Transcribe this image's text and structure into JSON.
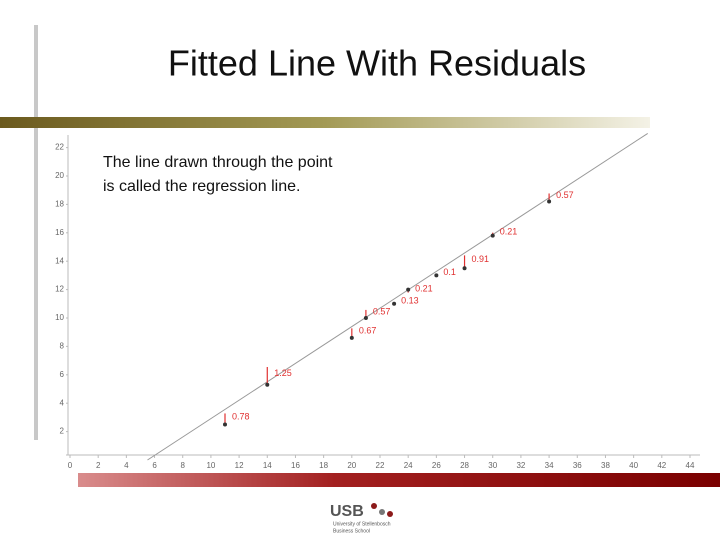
{
  "chart_data": {
    "type": "scatter",
    "title": "Fitted Line With Residuals",
    "annotation": [
      "The line drawn through the point",
      "is called the regression line."
    ],
    "x": [
      11,
      14,
      20,
      21,
      23,
      24,
      26,
      28,
      30,
      34
    ],
    "y": [
      2.5,
      5.3,
      8.6,
      10.0,
      11.0,
      12.0,
      13.0,
      13.5,
      15.8,
      18.2
    ],
    "residuals": [
      0.78,
      1.25,
      0.67,
      0.57,
      0.13,
      0.21,
      0.1,
      0.91,
      0.21,
      0.57
    ],
    "fit_line": {
      "x": [
        5.5,
        41
      ],
      "y": [
        0,
        23
      ]
    },
    "xlim": [
      0,
      44
    ],
    "ylim": [
      0,
      22
    ],
    "xticks": [
      0,
      2,
      4,
      6,
      8,
      10,
      12,
      14,
      16,
      18,
      20,
      22,
      24,
      26,
      28,
      30,
      32,
      34,
      36,
      38,
      40,
      42,
      44
    ],
    "yticks": [
      2,
      4,
      6,
      8,
      10,
      12,
      14,
      16,
      18,
      20,
      22
    ],
    "point_color": "#333333",
    "residual_color": "#e03030",
    "line_color": "#999999"
  },
  "footer": {
    "logo": "USB",
    "lines": [
      "University of Stellenbosch",
      "Business School"
    ]
  }
}
